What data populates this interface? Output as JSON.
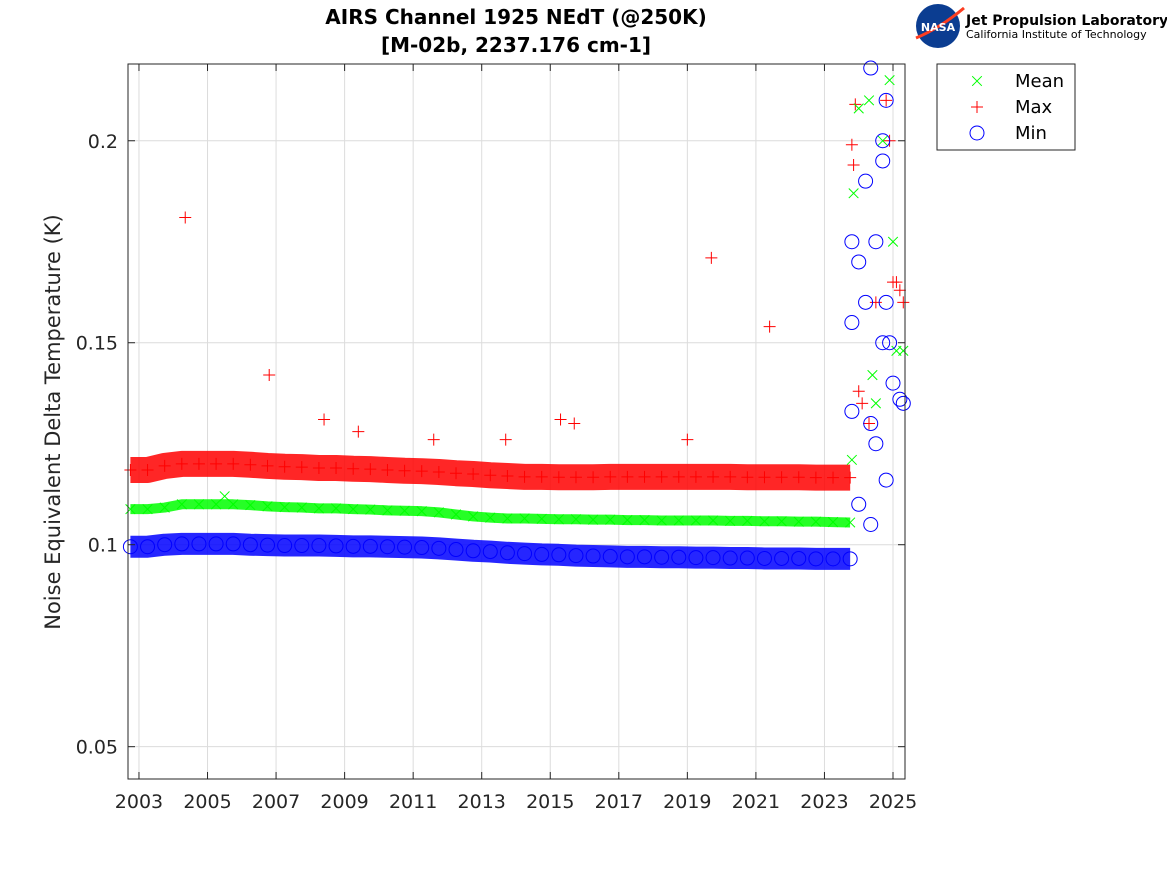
{
  "chart_data": {
    "type": "scatter",
    "title": [
      "AIRS Channel 1925 NEdT (@250K)",
      "[M-02b, 2237.176 cm-1]"
    ],
    "xlabel": "",
    "ylabel": "Noise Equivalent Delta Temperature (K)",
    "xlim": [
      2002.68,
      2025.35
    ],
    "ylim": [
      0.042,
      0.219
    ],
    "xticks": [
      2003,
      2005,
      2007,
      2009,
      2011,
      2013,
      2015,
      2017,
      2019,
      2021,
      2023,
      2025
    ],
    "yticks": [
      0.05,
      0.1,
      0.15,
      0.2
    ],
    "ytick_labels": [
      "0.05",
      "0.1",
      "0.15",
      "0.2"
    ],
    "grid": true,
    "legend_position": "outside-top-right",
    "x": [
      2002.75,
      2003.25,
      2003.75,
      2004.25,
      2004.75,
      2005.25,
      2005.75,
      2006.25,
      2006.75,
      2007.25,
      2007.75,
      2008.25,
      2008.75,
      2009.25,
      2009.75,
      2010.25,
      2010.75,
      2011.25,
      2011.75,
      2012.25,
      2012.75,
      2013.25,
      2013.75,
      2014.25,
      2014.75,
      2015.25,
      2015.75,
      2016.25,
      2016.75,
      2017.25,
      2017.75,
      2018.25,
      2018.75,
      2019.25,
      2019.75,
      2020.25,
      2020.75,
      2021.25,
      2021.75,
      2022.25,
      2022.75,
      2023.25,
      2023.75
    ],
    "series": [
      {
        "name": "Max",
        "marker": "plus",
        "color": "#ff0000",
        "values": [
          0.1185,
          0.1185,
          0.1195,
          0.12,
          0.12,
          0.12,
          0.12,
          0.1198,
          0.1195,
          0.1193,
          0.1192,
          0.119,
          0.119,
          0.1188,
          0.1187,
          0.1185,
          0.1183,
          0.1182,
          0.118,
          0.1177,
          0.1175,
          0.1172,
          0.117,
          0.1168,
          0.1168,
          0.1167,
          0.1167,
          0.1167,
          0.1168,
          0.1168,
          0.1168,
          0.1168,
          0.1168,
          0.1168,
          0.1168,
          0.1168,
          0.1167,
          0.1167,
          0.1167,
          0.1167,
          0.1166,
          0.1166,
          0.1166
        ],
        "extra_points": [
          [
            2004.35,
            0.181
          ],
          [
            2006.8,
            0.142
          ],
          [
            2008.4,
            0.131
          ],
          [
            2009.4,
            0.128
          ],
          [
            2011.6,
            0.126
          ],
          [
            2013.7,
            0.126
          ],
          [
            2015.3,
            0.131
          ],
          [
            2015.7,
            0.13
          ],
          [
            2019.0,
            0.126
          ],
          [
            2019.7,
            0.171
          ],
          [
            2021.4,
            0.154
          ],
          [
            2023.8,
            0.199
          ],
          [
            2023.85,
            0.194
          ],
          [
            2023.9,
            0.209
          ],
          [
            2024.0,
            0.138
          ],
          [
            2024.1,
            0.135
          ],
          [
            2024.3,
            0.13
          ],
          [
            2024.5,
            0.16
          ],
          [
            2024.8,
            0.21
          ],
          [
            2024.9,
            0.2
          ],
          [
            2025.0,
            0.165
          ],
          [
            2025.1,
            0.165
          ],
          [
            2025.2,
            0.163
          ],
          [
            2025.3,
            0.16
          ]
        ]
      },
      {
        "name": "Mean",
        "marker": "x",
        "color": "#00ff00",
        "values": [
          0.1088,
          0.1088,
          0.1092,
          0.11,
          0.11,
          0.11,
          0.11,
          0.1098,
          0.1095,
          0.1093,
          0.1092,
          0.109,
          0.109,
          0.1088,
          0.1087,
          0.1085,
          0.1084,
          0.1083,
          0.108,
          0.1075,
          0.107,
          0.1067,
          0.1065,
          0.1065,
          0.1064,
          0.1063,
          0.1063,
          0.1062,
          0.1062,
          0.1061,
          0.1061,
          0.106,
          0.106,
          0.106,
          0.106,
          0.1059,
          0.1059,
          0.1058,
          0.1058,
          0.1057,
          0.1057,
          0.1056,
          0.1055
        ],
        "extra_points": [
          [
            2005.5,
            0.112
          ],
          [
            2023.8,
            0.121
          ],
          [
            2023.85,
            0.187
          ],
          [
            2024.0,
            0.208
          ],
          [
            2024.3,
            0.21
          ],
          [
            2024.4,
            0.142
          ],
          [
            2024.5,
            0.135
          ],
          [
            2024.7,
            0.2
          ],
          [
            2024.9,
            0.215
          ],
          [
            2025.0,
            0.175
          ],
          [
            2025.1,
            0.148
          ],
          [
            2025.3,
            0.148
          ]
        ]
      },
      {
        "name": "Min",
        "marker": "circle",
        "color": "#0000ff",
        "values": [
          0.0995,
          0.0995,
          0.1,
          0.1002,
          0.1002,
          0.1002,
          0.1002,
          0.1,
          0.0999,
          0.0998,
          0.0998,
          0.0998,
          0.0997,
          0.0996,
          0.0996,
          0.0995,
          0.0994,
          0.0993,
          0.0991,
          0.0988,
          0.0985,
          0.0983,
          0.098,
          0.0978,
          0.0976,
          0.0975,
          0.0973,
          0.0972,
          0.0971,
          0.097,
          0.097,
          0.0969,
          0.0969,
          0.0968,
          0.0968,
          0.0967,
          0.0967,
          0.0966,
          0.0966,
          0.0966,
          0.0965,
          0.0965,
          0.0965
        ],
        "extra_points": [
          [
            2023.8,
            0.175
          ],
          [
            2023.8,
            0.155
          ],
          [
            2023.8,
            0.133
          ],
          [
            2024.0,
            0.17
          ],
          [
            2024.0,
            0.11
          ],
          [
            2024.2,
            0.19
          ],
          [
            2024.2,
            0.16
          ],
          [
            2024.35,
            0.218
          ],
          [
            2024.35,
            0.13
          ],
          [
            2024.35,
            0.105
          ],
          [
            2024.5,
            0.175
          ],
          [
            2024.5,
            0.125
          ],
          [
            2024.7,
            0.195
          ],
          [
            2024.7,
            0.2
          ],
          [
            2024.7,
            0.15
          ],
          [
            2024.8,
            0.21
          ],
          [
            2024.8,
            0.16
          ],
          [
            2024.8,
            0.116
          ],
          [
            2024.9,
            0.15
          ],
          [
            2025.0,
            0.14
          ],
          [
            2025.2,
            0.136
          ],
          [
            2025.3,
            0.135
          ]
        ]
      }
    ],
    "legend_order": [
      "Mean",
      "Max",
      "Min"
    ]
  },
  "logo": {
    "org": "Jet Propulsion Laboratory",
    "sub": "California Institute of Technology",
    "badge": "NASA"
  }
}
